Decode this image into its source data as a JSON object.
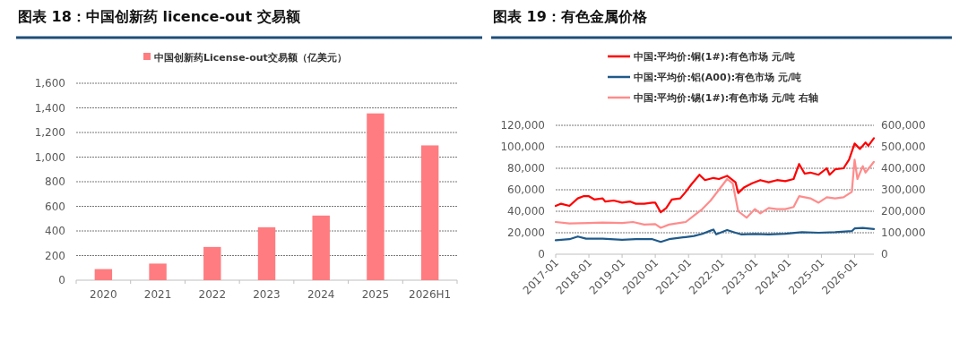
{
  "chart_data": [
    {
      "type": "bar",
      "title": "图表 18：中国创新药 licence-out 交易额",
      "categories": [
        "2020",
        "2021",
        "2022",
        "2023",
        "2024",
        "2025",
        "2026H1"
      ],
      "series": [
        {
          "name": "中国创新药License-out交易额（亿美元）",
          "color": "#ff7c80",
          "values": [
            90,
            135,
            270,
            430,
            525,
            1355,
            1095
          ]
        }
      ],
      "ylim": [
        0,
        1600
      ],
      "yticks": [
        0,
        200,
        400,
        600,
        800,
        {
          "value": 1000,
          "label": "1,000"
        },
        {
          "value": 1200,
          "label": "1,200"
        },
        {
          "value": 1400,
          "label": "1,400"
        },
        {
          "value": 1600,
          "label": "1,600"
        }
      ],
      "grid": "y",
      "legend": "top"
    },
    {
      "type": "line",
      "title": "图表 19：有色金属价格",
      "xlim": [
        "2017-01",
        "2026-08"
      ],
      "xticks": [
        "2017-01",
        "2018-01",
        "2019-01",
        "2020-01",
        "2021-01",
        "2022-01",
        "2023-01",
        "2024-01",
        "2025-01",
        "2026-01"
      ],
      "ylim": [
        0,
        120000
      ],
      "yticks": [
        0,
        {
          "value": 20000,
          "label": "20,000"
        },
        {
          "value": 40000,
          "label": "40,000"
        },
        {
          "value": 60000,
          "label": "60,000"
        },
        {
          "value": 80000,
          "label": "80,000"
        },
        {
          "value": 100000,
          "label": "100,000"
        },
        {
          "value": 120000,
          "label": "120,000"
        }
      ],
      "y2lim": [
        0,
        600000
      ],
      "y2ticks": [
        0,
        {
          "value": 100000,
          "label": "100,000"
        },
        {
          "value": 200000,
          "label": "200,000"
        },
        {
          "value": 300000,
          "label": "300,000"
        },
        {
          "value": 400000,
          "label": "400,000"
        },
        {
          "value": 500000,
          "label": "500,000"
        },
        {
          "value": 600000,
          "label": "600,000"
        }
      ],
      "grid": "y",
      "legend": "top",
      "line_style": "solid",
      "series": [
        {
          "name": "中国:平均价:铜(1#):有色市场 元/吨",
          "color": "#ff0000",
          "x": [
            "2017-01",
            "2017-03",
            "2017-06",
            "2017-09",
            "2017-11",
            "2018-01",
            "2018-03",
            "2018-06",
            "2018-07",
            "2018-10",
            "2019-01",
            "2019-04",
            "2019-06",
            "2019-09",
            "2019-12",
            "2020-01",
            "2020-03",
            "2020-05",
            "2020-07",
            "2020-10",
            "2020-12",
            "2021-02",
            "2021-05",
            "2021-07",
            "2021-10",
            "2021-12",
            "2022-03",
            "2022-06",
            "2022-07",
            "2022-09",
            "2022-12",
            "2023-03",
            "2023-06",
            "2023-09",
            "2023-12",
            "2024-03",
            "2024-05",
            "2024-07",
            "2024-09",
            "2024-12",
            "2025-03",
            "2025-04",
            "2025-06",
            "2025-09",
            "2025-11",
            "2026-01",
            "2026-03",
            "2026-05",
            "2026-06",
            "2026-08"
          ],
          "values": [
            45000,
            47000,
            45000,
            52000,
            54000,
            54000,
            51000,
            52000,
            49000,
            50000,
            48000,
            49000,
            47000,
            47000,
            48000,
            48000,
            39000,
            43000,
            51000,
            52000,
            58000,
            65000,
            74000,
            69000,
            71000,
            70000,
            73000,
            67000,
            57000,
            62000,
            66000,
            69000,
            67000,
            69000,
            68000,
            70000,
            84000,
            75000,
            76000,
            74000,
            80000,
            74000,
            79000,
            80000,
            88000,
            103000,
            98000,
            104000,
            101000,
            108000
          ]
        },
        {
          "name": "中国:平均价:铝(A00):有色市场 元/吨",
          "color": "#1f5a8a",
          "x": [
            "2017-01",
            "2017-06",
            "2017-09",
            "2017-12",
            "2018-06",
            "2019-01",
            "2019-06",
            "2019-12",
            "2020-03",
            "2020-06",
            "2020-12",
            "2021-03",
            "2021-06",
            "2021-09",
            "2021-10",
            "2021-11",
            "2022-03",
            "2022-06",
            "2022-08",
            "2023-01",
            "2023-06",
            "2023-12",
            "2024-06",
            "2024-12",
            "2025-06",
            "2025-12",
            "2026-01",
            "2026-04",
            "2026-08"
          ],
          "values": [
            13000,
            14000,
            16500,
            14500,
            14500,
            13500,
            14000,
            14000,
            11500,
            14000,
            16000,
            17000,
            19000,
            22000,
            23000,
            18500,
            22500,
            20000,
            18500,
            18800,
            18500,
            19000,
            20500,
            20000,
            20500,
            21500,
            24000,
            24500,
            23500
          ]
        },
        {
          "name": "中国:平均价:锡(1#):有色市场 元/吨 右轴",
          "color": "#ff8c8c",
          "axis": "y2",
          "x": [
            "2017-01",
            "2017-06",
            "2018-01",
            "2018-06",
            "2019-01",
            "2019-05",
            "2019-09",
            "2020-01",
            "2020-03",
            "2020-06",
            "2020-12",
            "2021-03",
            "2021-06",
            "2021-09",
            "2021-12",
            "2022-03",
            "2022-05",
            "2022-07",
            "2022-10",
            "2023-01",
            "2023-03",
            "2023-06",
            "2023-09",
            "2023-12",
            "2024-03",
            "2024-05",
            "2024-09",
            "2024-12",
            "2025-03",
            "2025-06",
            "2025-09",
            "2025-12",
            "2026-01",
            "2026-02",
            "2026-04",
            "2026-05",
            "2026-08"
          ],
          "values": [
            150000,
            143000,
            145000,
            147000,
            145000,
            150000,
            138000,
            140000,
            123000,
            138000,
            150000,
            180000,
            210000,
            250000,
            300000,
            350000,
            330000,
            200000,
            170000,
            210000,
            190000,
            215000,
            210000,
            210000,
            220000,
            270000,
            260000,
            240000,
            265000,
            260000,
            265000,
            290000,
            440000,
            350000,
            410000,
            380000,
            430000
          ]
        }
      ]
    }
  ]
}
